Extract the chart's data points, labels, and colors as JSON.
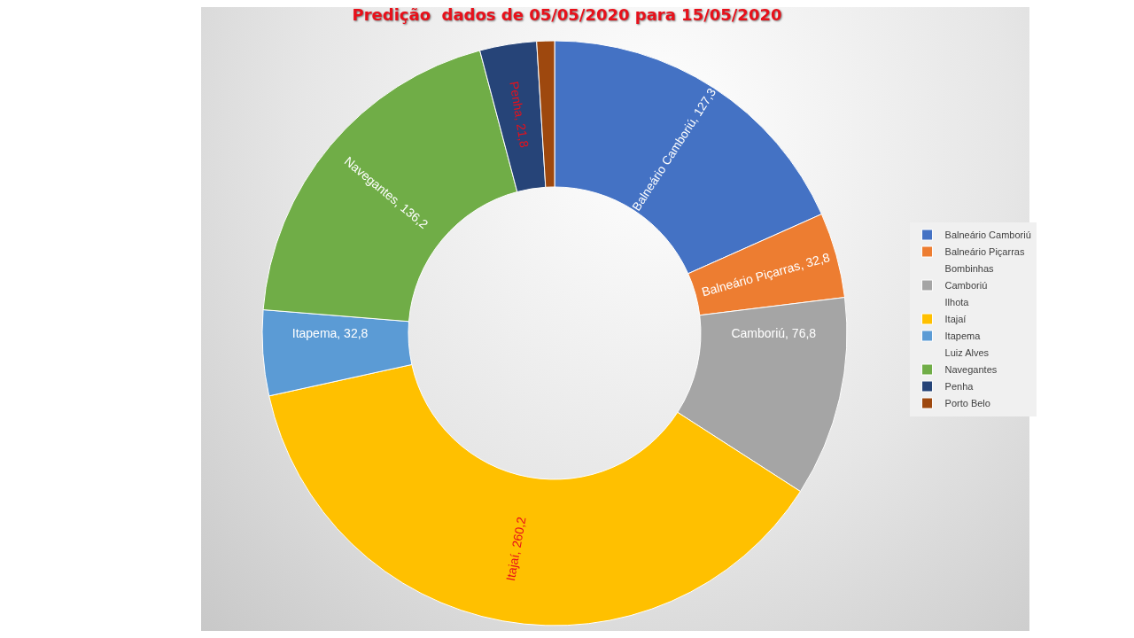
{
  "chart_data": {
    "type": "donut",
    "title": "Predição  dados de 05/05/2020 para 15/05/2020",
    "categories": [
      "Balneário Camboriú",
      "Balneário Piçarras",
      "Bombinhas",
      "Camboriú",
      "Ilhota",
      "Itajaí",
      "Itapema",
      "Luiz Alves",
      "Navegantes",
      "Penha",
      "Porto Belo"
    ],
    "values": [
      127.3,
      32.8,
      0,
      76.8,
      0,
      260.2,
      32.8,
      0,
      136.2,
      21.8,
      6.8
    ],
    "colors": [
      "#4472c4",
      "#ed7d31",
      null,
      "#a5a5a5",
      null,
      "#ffc000",
      "#5b9bd5",
      null,
      "#70ad47",
      "#264478",
      "#9e480e"
    ],
    "value_labels": [
      "Balneário Camboriú, 127,3",
      "Balneário Piçarras, 32,8",
      null,
      "Camboriú, 76,8",
      null,
      "Itajaí, 260,2",
      "Itapema, 32,8",
      null,
      "Navegantes, 136,2",
      "Penha, 21,8",
      null
    ],
    "legend": "right"
  }
}
